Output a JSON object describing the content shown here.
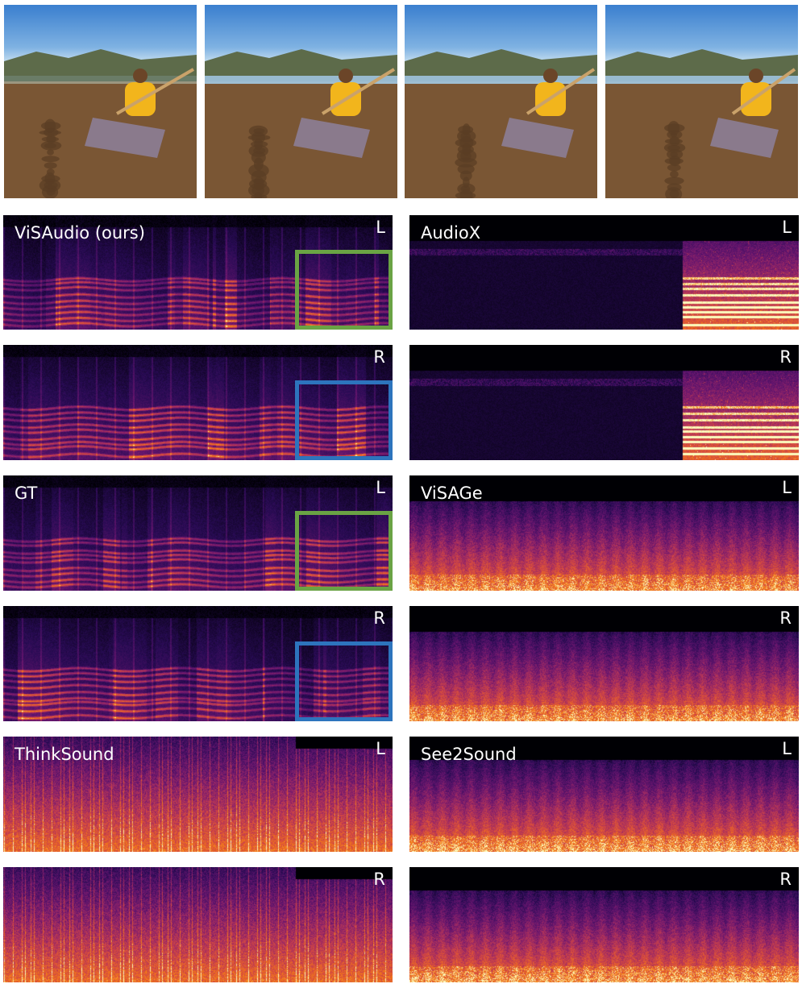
{
  "frames": [
    "sitar-frame-1",
    "sitar-frame-2",
    "sitar-frame-3",
    "sitar-frame-4"
  ],
  "methods": [
    {
      "name": "ViSAudio (ours)",
      "channels": [
        "L",
        "R"
      ],
      "highlight": true
    },
    {
      "name": "AudioX",
      "channels": [
        "L",
        "R"
      ]
    },
    {
      "name": "GT",
      "channels": [
        "L",
        "R"
      ],
      "highlight": true
    },
    {
      "name": "ViSAGe",
      "channels": [
        "L",
        "R"
      ]
    },
    {
      "name": "ThinkSound",
      "channels": [
        "L",
        "R"
      ]
    },
    {
      "name": "See2Sound",
      "channels": [
        "L",
        "R"
      ]
    }
  ],
  "colors": {
    "highlight_left": "#6aa344",
    "highlight_right": "#2d74bd",
    "colormap": "magma"
  }
}
